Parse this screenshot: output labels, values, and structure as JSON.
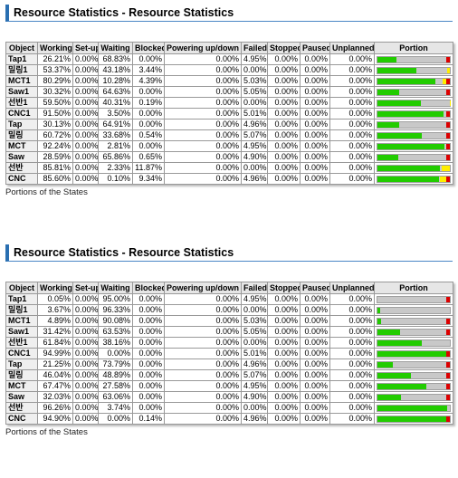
{
  "colors": {
    "working": "#22cc00",
    "setup": "#f0e000",
    "waiting": "#c8c8c8",
    "blocked": "#ffee00",
    "failed": "#dd0000",
    "title_accent": "#2a6fb1"
  },
  "sections": [
    {
      "title": "Resource Statistics - Resource Statistics",
      "caption": "Portions of the States",
      "headers": [
        "Object",
        "Working",
        "Set-up",
        "Waiting",
        "Blocked",
        "Powering up/down",
        "Failed",
        "Stopped",
        "Paused",
        "Unplanned",
        "Portion"
      ],
      "rows": [
        {
          "cells": [
            "Tap1",
            "26.21%",
            "0.00%",
            "68.83%",
            "0.00%",
            "0.00%",
            "4.95%",
            "0.00%",
            "0.00%",
            "0.00%"
          ],
          "portion": {
            "working": 26.21,
            "waiting": 68.83,
            "blocked": 0.0,
            "failed": 4.95
          }
        },
        {
          "cells": [
            "밀링1",
            "53.37%",
            "0.00%",
            "43.18%",
            "3.44%",
            "0.00%",
            "0.00%",
            "0.00%",
            "0.00%",
            "0.00%"
          ],
          "portion": {
            "working": 53.37,
            "waiting": 43.18,
            "blocked": 3.44,
            "failed": 0.0
          }
        },
        {
          "cells": [
            "MCT1",
            "80.29%",
            "0.00%",
            "10.28%",
            "4.39%",
            "0.00%",
            "5.03%",
            "0.00%",
            "0.00%",
            "0.00%"
          ],
          "portion": {
            "working": 80.29,
            "waiting": 10.28,
            "blocked": 4.39,
            "failed": 5.03
          }
        },
        {
          "cells": [
            "Saw1",
            "30.32%",
            "0.00%",
            "64.63%",
            "0.00%",
            "0.00%",
            "5.05%",
            "0.00%",
            "0.00%",
            "0.00%"
          ],
          "portion": {
            "working": 30.32,
            "waiting": 64.63,
            "blocked": 0.0,
            "failed": 5.05
          }
        },
        {
          "cells": [
            "선반1",
            "59.50%",
            "0.00%",
            "40.31%",
            "0.19%",
            "0.00%",
            "0.00%",
            "0.00%",
            "0.00%",
            "0.00%"
          ],
          "portion": {
            "working": 59.5,
            "waiting": 40.31,
            "blocked": 0.19,
            "failed": 0.0
          }
        },
        {
          "cells": [
            "CNC1",
            "91.50%",
            "0.00%",
            "3.50%",
            "0.00%",
            "0.00%",
            "5.01%",
            "0.00%",
            "0.00%",
            "0.00%"
          ],
          "portion": {
            "working": 91.5,
            "waiting": 3.5,
            "blocked": 0.0,
            "failed": 5.01
          }
        },
        {
          "cells": [
            "Tap",
            "30.13%",
            "0.00%",
            "64.91%",
            "0.00%",
            "0.00%",
            "4.96%",
            "0.00%",
            "0.00%",
            "0.00%"
          ],
          "portion": {
            "working": 30.13,
            "waiting": 64.91,
            "blocked": 0.0,
            "failed": 4.96
          }
        },
        {
          "cells": [
            "밀링",
            "60.72%",
            "0.00%",
            "33.68%",
            "0.54%",
            "0.00%",
            "5.07%",
            "0.00%",
            "0.00%",
            "0.00%"
          ],
          "portion": {
            "working": 60.72,
            "waiting": 33.68,
            "blocked": 0.54,
            "failed": 5.07
          }
        },
        {
          "cells": [
            "MCT",
            "92.24%",
            "0.00%",
            "2.81%",
            "0.00%",
            "0.00%",
            "4.95%",
            "0.00%",
            "0.00%",
            "0.00%"
          ],
          "portion": {
            "working": 92.24,
            "waiting": 2.81,
            "blocked": 0.0,
            "failed": 4.95
          }
        },
        {
          "cells": [
            "Saw",
            "28.59%",
            "0.00%",
            "65.86%",
            "0.65%",
            "0.00%",
            "4.90%",
            "0.00%",
            "0.00%",
            "0.00%"
          ],
          "portion": {
            "working": 28.59,
            "waiting": 65.86,
            "blocked": 0.65,
            "failed": 4.9
          }
        },
        {
          "cells": [
            "선반",
            "85.81%",
            "0.00%",
            "2.33%",
            "11.87%",
            "0.00%",
            "0.00%",
            "0.00%",
            "0.00%",
            "0.00%"
          ],
          "portion": {
            "working": 85.81,
            "waiting": 2.33,
            "blocked": 11.87,
            "failed": 0.0
          }
        },
        {
          "cells": [
            "CNC",
            "85.60%",
            "0.00%",
            "0.10%",
            "9.34%",
            "0.00%",
            "4.96%",
            "0.00%",
            "0.00%",
            "0.00%"
          ],
          "portion": {
            "working": 85.6,
            "waiting": 0.1,
            "blocked": 9.34,
            "failed": 4.96
          }
        }
      ]
    },
    {
      "title": "Resource Statistics - Resource Statistics",
      "caption": "Portions of the States",
      "headers": [
        "Object",
        "Working",
        "Set-up",
        "Waiting",
        "Blocked",
        "Powering up/down",
        "Failed",
        "Stopped",
        "Paused",
        "Unplanned",
        "Portion"
      ],
      "rows": [
        {
          "cells": [
            "Tap1",
            "0.05%",
            "0.00%",
            "95.00%",
            "0.00%",
            "0.00%",
            "4.95%",
            "0.00%",
            "0.00%",
            "0.00%"
          ],
          "portion": {
            "working": 0.05,
            "waiting": 95.0,
            "blocked": 0.0,
            "failed": 4.95
          }
        },
        {
          "cells": [
            "밀링1",
            "3.67%",
            "0.00%",
            "96.33%",
            "0.00%",
            "0.00%",
            "0.00%",
            "0.00%",
            "0.00%",
            "0.00%"
          ],
          "portion": {
            "working": 3.67,
            "waiting": 96.33,
            "blocked": 0.0,
            "failed": 0.0
          }
        },
        {
          "cells": [
            "MCT1",
            "4.89%",
            "0.00%",
            "90.08%",
            "0.00%",
            "0.00%",
            "5.03%",
            "0.00%",
            "0.00%",
            "0.00%"
          ],
          "portion": {
            "working": 4.89,
            "waiting": 90.08,
            "blocked": 0.0,
            "failed": 5.03
          }
        },
        {
          "cells": [
            "Saw1",
            "31.42%",
            "0.00%",
            "63.53%",
            "0.00%",
            "0.00%",
            "5.05%",
            "0.00%",
            "0.00%",
            "0.00%"
          ],
          "portion": {
            "working": 31.42,
            "waiting": 63.53,
            "blocked": 0.0,
            "failed": 5.05
          }
        },
        {
          "cells": [
            "선반1",
            "61.84%",
            "0.00%",
            "38.16%",
            "0.00%",
            "0.00%",
            "0.00%",
            "0.00%",
            "0.00%",
            "0.00%"
          ],
          "portion": {
            "working": 61.84,
            "waiting": 38.16,
            "blocked": 0.0,
            "failed": 0.0
          }
        },
        {
          "cells": [
            "CNC1",
            "94.99%",
            "0.00%",
            "0.00%",
            "0.00%",
            "0.00%",
            "5.01%",
            "0.00%",
            "0.00%",
            "0.00%"
          ],
          "portion": {
            "working": 94.99,
            "waiting": 0.0,
            "blocked": 0.0,
            "failed": 5.01
          }
        },
        {
          "cells": [
            "Tap",
            "21.25%",
            "0.00%",
            "73.79%",
            "0.00%",
            "0.00%",
            "4.96%",
            "0.00%",
            "0.00%",
            "0.00%"
          ],
          "portion": {
            "working": 21.25,
            "waiting": 73.79,
            "blocked": 0.0,
            "failed": 4.96
          }
        },
        {
          "cells": [
            "밀링",
            "46.04%",
            "0.00%",
            "48.89%",
            "0.00%",
            "0.00%",
            "5.07%",
            "0.00%",
            "0.00%",
            "0.00%"
          ],
          "portion": {
            "working": 46.04,
            "waiting": 48.89,
            "blocked": 0.0,
            "failed": 5.07
          }
        },
        {
          "cells": [
            "MCT",
            "67.47%",
            "0.00%",
            "27.58%",
            "0.00%",
            "0.00%",
            "4.95%",
            "0.00%",
            "0.00%",
            "0.00%"
          ],
          "portion": {
            "working": 67.47,
            "waiting": 27.58,
            "blocked": 0.0,
            "failed": 4.95
          }
        },
        {
          "cells": [
            "Saw",
            "32.03%",
            "0.00%",
            "63.06%",
            "0.00%",
            "0.00%",
            "4.90%",
            "0.00%",
            "0.00%",
            "0.00%"
          ],
          "portion": {
            "working": 32.03,
            "waiting": 63.06,
            "blocked": 0.0,
            "failed": 4.9
          }
        },
        {
          "cells": [
            "선반",
            "96.26%",
            "0.00%",
            "3.74%",
            "0.00%",
            "0.00%",
            "0.00%",
            "0.00%",
            "0.00%",
            "0.00%"
          ],
          "portion": {
            "working": 96.26,
            "waiting": 3.74,
            "blocked": 0.0,
            "failed": 0.0
          }
        },
        {
          "cells": [
            "CNC",
            "94.90%",
            "0.00%",
            "0.00%",
            "0.14%",
            "0.00%",
            "4.96%",
            "0.00%",
            "0.00%",
            "0.00%"
          ],
          "portion": {
            "working": 94.9,
            "waiting": 0.0,
            "blocked": 0.14,
            "failed": 4.96
          }
        }
      ]
    }
  ]
}
